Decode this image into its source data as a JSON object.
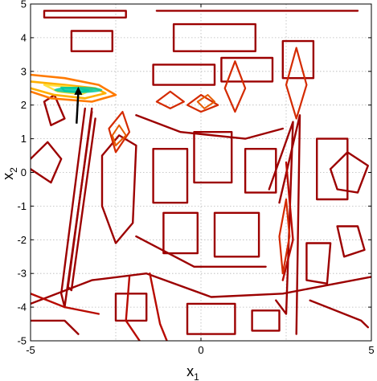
{
  "chart_data": {
    "type": "contour",
    "title": "",
    "xlabel": {
      "main": "x",
      "sub": "1"
    },
    "ylabel": {
      "main": "x",
      "sub": "2"
    },
    "xlim": [
      -5,
      5
    ],
    "ylim": [
      -5,
      5
    ],
    "xticks": [
      -5,
      0,
      5
    ],
    "xtick_labels": [
      "-5",
      "0",
      "5"
    ],
    "yticks": [
      5,
      4,
      3,
      2,
      1,
      0,
      -1,
      -2,
      -3,
      -4,
      -5
    ],
    "ytick_labels": [
      "5",
      "4",
      "3",
      "2",
      "1",
      "0",
      "-1",
      "-2",
      "-3",
      "-4",
      "-5"
    ],
    "grid": true,
    "colormap": "hot-reversed",
    "colors": {
      "outer": "#a00000",
      "mid": "#e04000",
      "inner": "#ffd000",
      "peak": "#00c8a0",
      "arrow": "#000000"
    },
    "peak": {
      "x": -3.6,
      "y": 2.45
    },
    "arrow": {
      "from": [
        -3.65,
        1.45
      ],
      "to": [
        -3.6,
        2.45
      ]
    },
    "contours": [
      {
        "level": 1,
        "points": [
          [
            -4.6,
            4.8
          ],
          [
            -2.2,
            4.8
          ],
          [
            -2.2,
            4.6
          ],
          [
            -4.6,
            4.6
          ],
          [
            -4.6,
            4.8
          ]
        ]
      },
      {
        "level": 1,
        "points": [
          [
            -3.8,
            4.2
          ],
          [
            -2.6,
            4.2
          ],
          [
            -2.6,
            3.6
          ],
          [
            -3.8,
            3.6
          ],
          [
            -3.8,
            4.2
          ]
        ]
      },
      {
        "level": 1,
        "points": [
          [
            -1.3,
            4.8
          ],
          [
            4.6,
            4.8
          ]
        ]
      },
      {
        "level": 1,
        "points": [
          [
            -0.8,
            4.4
          ],
          [
            1.6,
            4.4
          ],
          [
            1.6,
            3.6
          ],
          [
            -0.8,
            3.6
          ],
          [
            -0.8,
            4.4
          ]
        ]
      },
      {
        "level": 1,
        "points": [
          [
            -1.4,
            3.2
          ],
          [
            0.4,
            3.2
          ],
          [
            0.4,
            2.6
          ],
          [
            -1.4,
            2.6
          ],
          [
            -1.4,
            3.2
          ]
        ]
      },
      {
        "level": 1,
        "points": [
          [
            0.6,
            3.4
          ],
          [
            2.1,
            3.4
          ],
          [
            2.1,
            2.7
          ],
          [
            0.6,
            2.7
          ],
          [
            0.6,
            3.4
          ]
        ]
      },
      {
        "level": 1,
        "points": [
          [
            2.4,
            3.9
          ],
          [
            3.3,
            3.9
          ],
          [
            3.3,
            2.8
          ],
          [
            2.4,
            2.8
          ],
          [
            2.4,
            3.9
          ]
        ]
      },
      {
        "level": 1,
        "points": [
          [
            -4.6,
            2.1
          ],
          [
            -4.4,
            1.4
          ],
          [
            -4.0,
            1.6
          ],
          [
            -4.3,
            2.3
          ],
          [
            -4.6,
            2.1
          ]
        ]
      },
      {
        "level": 1,
        "points": [
          [
            -5,
            0.4
          ],
          [
            -4.5,
            0.9
          ],
          [
            -4.1,
            0.4
          ],
          [
            -4.4,
            -0.3
          ],
          [
            -5,
            0.1
          ]
        ]
      },
      {
        "level": 1,
        "points": [
          [
            -3.4,
            1.9
          ],
          [
            -4.1,
            -3.6
          ],
          [
            -4.0,
            -4.0
          ],
          [
            -3.2,
            1.8
          ]
        ]
      },
      {
        "level": 1,
        "points": [
          [
            -3.2,
            1.9
          ],
          [
            -3.9,
            -3.4
          ],
          [
            -3.8,
            -3.5
          ],
          [
            -3.1,
            1.6
          ]
        ]
      },
      {
        "level": 1,
        "points": [
          [
            -2.9,
            0.5
          ],
          [
            -2.4,
            1.1
          ],
          [
            -1.9,
            0.8
          ],
          [
            -2.0,
            -1.5
          ],
          [
            -2.5,
            -2.1
          ],
          [
            -2.9,
            -1.0
          ],
          [
            -2.9,
            0.5
          ]
        ]
      },
      {
        "level": 1,
        "points": [
          [
            -1.4,
            0.7
          ],
          [
            -0.4,
            0.7
          ],
          [
            -0.4,
            -0.9
          ],
          [
            -1.4,
            -0.9
          ],
          [
            -1.4,
            0.7
          ]
        ]
      },
      {
        "level": 1,
        "points": [
          [
            -0.2,
            1.2
          ],
          [
            0.9,
            1.2
          ],
          [
            0.9,
            -0.3
          ],
          [
            -0.2,
            -0.3
          ],
          [
            -0.2,
            1.2
          ]
        ]
      },
      {
        "level": 1,
        "points": [
          [
            -1.1,
            -1.2
          ],
          [
            -0.1,
            -1.2
          ],
          [
            -0.1,
            -2.4
          ],
          [
            -1.1,
            -2.4
          ],
          [
            -1.1,
            -1.2
          ]
        ]
      },
      {
        "level": 1,
        "points": [
          [
            0.4,
            -1.2
          ],
          [
            1.7,
            -1.2
          ],
          [
            1.7,
            -2.5
          ],
          [
            0.4,
            -2.5
          ],
          [
            0.4,
            -1.2
          ]
        ]
      },
      {
        "level": 1,
        "points": [
          [
            -1.9,
            -1.9
          ],
          [
            -0.2,
            -2.8
          ],
          [
            1.9,
            -2.8
          ]
        ]
      },
      {
        "level": 1,
        "points": [
          [
            1.3,
            0.7
          ],
          [
            2.2,
            0.7
          ],
          [
            2.2,
            -0.6
          ],
          [
            1.3,
            -0.6
          ],
          [
            1.3,
            0.7
          ]
        ]
      },
      {
        "level": 1,
        "points": [
          [
            3.4,
            1.0
          ],
          [
            4.3,
            1.0
          ],
          [
            4.3,
            -0.8
          ],
          [
            3.4,
            -0.8
          ],
          [
            3.4,
            1.0
          ]
        ]
      },
      {
        "level": 1,
        "points": [
          [
            3.8,
            0.1
          ],
          [
            4.3,
            0.6
          ],
          [
            4.9,
            0.2
          ],
          [
            4.6,
            -0.6
          ],
          [
            4.0,
            -0.5
          ],
          [
            3.8,
            0.1
          ]
        ]
      },
      {
        "level": 1,
        "points": [
          [
            3.1,
            -2.1
          ],
          [
            3.1,
            -3.2
          ],
          [
            3.7,
            -3.3
          ],
          [
            3.8,
            -2.1
          ],
          [
            3.1,
            -2.1
          ]
        ]
      },
      {
        "level": 1,
        "points": [
          [
            4.0,
            -1.6
          ],
          [
            4.6,
            -1.6
          ],
          [
            4.8,
            -2.3
          ],
          [
            4.2,
            -2.5
          ],
          [
            4.0,
            -1.6
          ]
        ]
      },
      {
        "level": 1,
        "points": [
          [
            2.3,
            -0.9
          ],
          [
            2.9,
            1.7
          ],
          [
            2.8,
            -4.8
          ]
        ]
      },
      {
        "level": 1,
        "points": [
          [
            2.0,
            -0.5
          ],
          [
            2.7,
            1.5
          ],
          [
            2.5,
            -4.2
          ],
          [
            2.2,
            -3.8
          ]
        ]
      },
      {
        "level": 1,
        "points": [
          [
            -5,
            -3.9
          ],
          [
            -3.2,
            -3.2
          ],
          [
            -1.6,
            -3.0
          ],
          [
            0.3,
            -3.7
          ],
          [
            2.4,
            -3.6
          ],
          [
            5,
            -3.1
          ]
        ]
      },
      {
        "level": 1,
        "points": [
          [
            -5,
            -4.4
          ],
          [
            -4.0,
            -4.4
          ],
          [
            -3.6,
            -4.8
          ]
        ]
      },
      {
        "level": 1,
        "points": [
          [
            -2.5,
            -3.6
          ],
          [
            -1.6,
            -3.6
          ],
          [
            -1.6,
            -4.4
          ],
          [
            -2.5,
            -4.4
          ],
          [
            -2.5,
            -3.6
          ]
        ]
      },
      {
        "level": 1,
        "points": [
          [
            -0.4,
            -3.9
          ],
          [
            1.0,
            -3.9
          ],
          [
            1.0,
            -4.8
          ],
          [
            -0.4,
            -4.8
          ],
          [
            -0.4,
            -3.9
          ]
        ]
      },
      {
        "level": 1,
        "points": [
          [
            1.5,
            -4.1
          ],
          [
            2.3,
            -4.1
          ],
          [
            2.3,
            -4.7
          ],
          [
            1.5,
            -4.7
          ],
          [
            1.5,
            -4.1
          ]
        ]
      },
      {
        "level": 1,
        "points": [
          [
            3.2,
            -3.8
          ],
          [
            4.7,
            -4.4
          ],
          [
            4.9,
            -4.6
          ]
        ]
      },
      {
        "level": 1,
        "points": [
          [
            -1.9,
            1.7
          ],
          [
            -0.6,
            1.2
          ],
          [
            1.3,
            1.0
          ],
          [
            2.4,
            1.3
          ]
        ]
      },
      {
        "level": 2,
        "points": [
          [
            -2.1,
            -3.1
          ],
          [
            -2.2,
            -4.4
          ],
          [
            -1.8,
            -5.0
          ]
        ]
      },
      {
        "level": 2,
        "points": [
          [
            -1.5,
            -3.0
          ],
          [
            -1.2,
            -4.5
          ],
          [
            -1.0,
            -5.0
          ]
        ]
      },
      {
        "level": 2,
        "points": [
          [
            2.5,
            0.3
          ],
          [
            2.7,
            -2.0
          ],
          [
            2.4,
            -3.2
          ]
        ]
      },
      {
        "level": 2,
        "points": [
          [
            -5,
            -3.6
          ],
          [
            -4.0,
            -4.0
          ],
          [
            -3.0,
            -4.2
          ]
        ]
      },
      {
        "level": 3,
        "points": [
          [
            -2.3,
            1.8
          ],
          [
            -2.1,
            1.2
          ],
          [
            -2.5,
            0.6
          ],
          [
            -2.7,
            1.3
          ],
          [
            -2.3,
            1.8
          ]
        ]
      },
      {
        "level": 3,
        "points": [
          [
            -0.9,
            2.4
          ],
          [
            -0.5,
            2.1
          ],
          [
            -0.9,
            1.9
          ],
          [
            -1.3,
            2.1
          ],
          [
            -0.9,
            2.4
          ]
        ]
      },
      {
        "level": 3,
        "points": [
          [
            0.0,
            2.3
          ],
          [
            0.5,
            2.0
          ],
          [
            0.0,
            1.8
          ],
          [
            -0.4,
            2.0
          ],
          [
            0.0,
            2.3
          ]
        ]
      },
      {
        "level": 3,
        "points": [
          [
            1.0,
            3.3
          ],
          [
            1.3,
            2.5
          ],
          [
            1.0,
            1.8
          ],
          [
            0.7,
            2.5
          ],
          [
            1.0,
            3.3
          ]
        ]
      },
      {
        "level": 3,
        "points": [
          [
            2.8,
            3.7
          ],
          [
            3.1,
            2.6
          ],
          [
            2.8,
            1.6
          ],
          [
            2.5,
            2.6
          ],
          [
            2.8,
            3.7
          ]
        ]
      },
      {
        "level": 3,
        "points": [
          [
            2.5,
            -0.8
          ],
          [
            2.6,
            -1.9
          ],
          [
            2.4,
            -3.0
          ],
          [
            2.3,
            -1.9
          ],
          [
            2.5,
            -0.8
          ]
        ]
      },
      {
        "level": 4,
        "points": [
          [
            -2.4,
            1.4
          ],
          [
            -2.2,
            1.1
          ],
          [
            -2.5,
            0.8
          ],
          [
            -2.6,
            1.1
          ],
          [
            -2.4,
            1.4
          ]
        ]
      },
      {
        "level": 4,
        "points": [
          [
            0.2,
            2.3
          ],
          [
            0.4,
            2.1
          ],
          [
            0.1,
            1.9
          ],
          [
            -0.1,
            2.1
          ],
          [
            0.2,
            2.3
          ]
        ]
      },
      {
        "level": 5,
        "points": [
          [
            -5,
            2.9
          ],
          [
            -4.0,
            2.8
          ],
          [
            -3.0,
            2.6
          ],
          [
            -2.5,
            2.3
          ],
          [
            -3.2,
            2.1
          ],
          [
            -4.4,
            2.2
          ],
          [
            -5,
            2.4
          ]
        ]
      },
      {
        "level": 6,
        "points": [
          [
            -5,
            2.7
          ],
          [
            -4.0,
            2.6
          ],
          [
            -3.1,
            2.5
          ],
          [
            -2.8,
            2.35
          ],
          [
            -3.4,
            2.2
          ],
          [
            -4.3,
            2.3
          ],
          [
            -5,
            2.5
          ]
        ]
      },
      {
        "level": 7,
        "points": [
          [
            -4.6,
            2.6
          ],
          [
            -3.9,
            2.55
          ],
          [
            -3.2,
            2.45
          ],
          [
            -3.5,
            2.32
          ],
          [
            -4.2,
            2.4
          ],
          [
            -4.6,
            2.6
          ]
        ]
      },
      {
        "level": 8,
        "points": [
          [
            -4.1,
            2.52
          ],
          [
            -3.6,
            2.5
          ],
          [
            -3.3,
            2.44
          ],
          [
            -3.6,
            2.38
          ],
          [
            -4.0,
            2.42
          ],
          [
            -4.1,
            2.52
          ]
        ]
      }
    ]
  }
}
